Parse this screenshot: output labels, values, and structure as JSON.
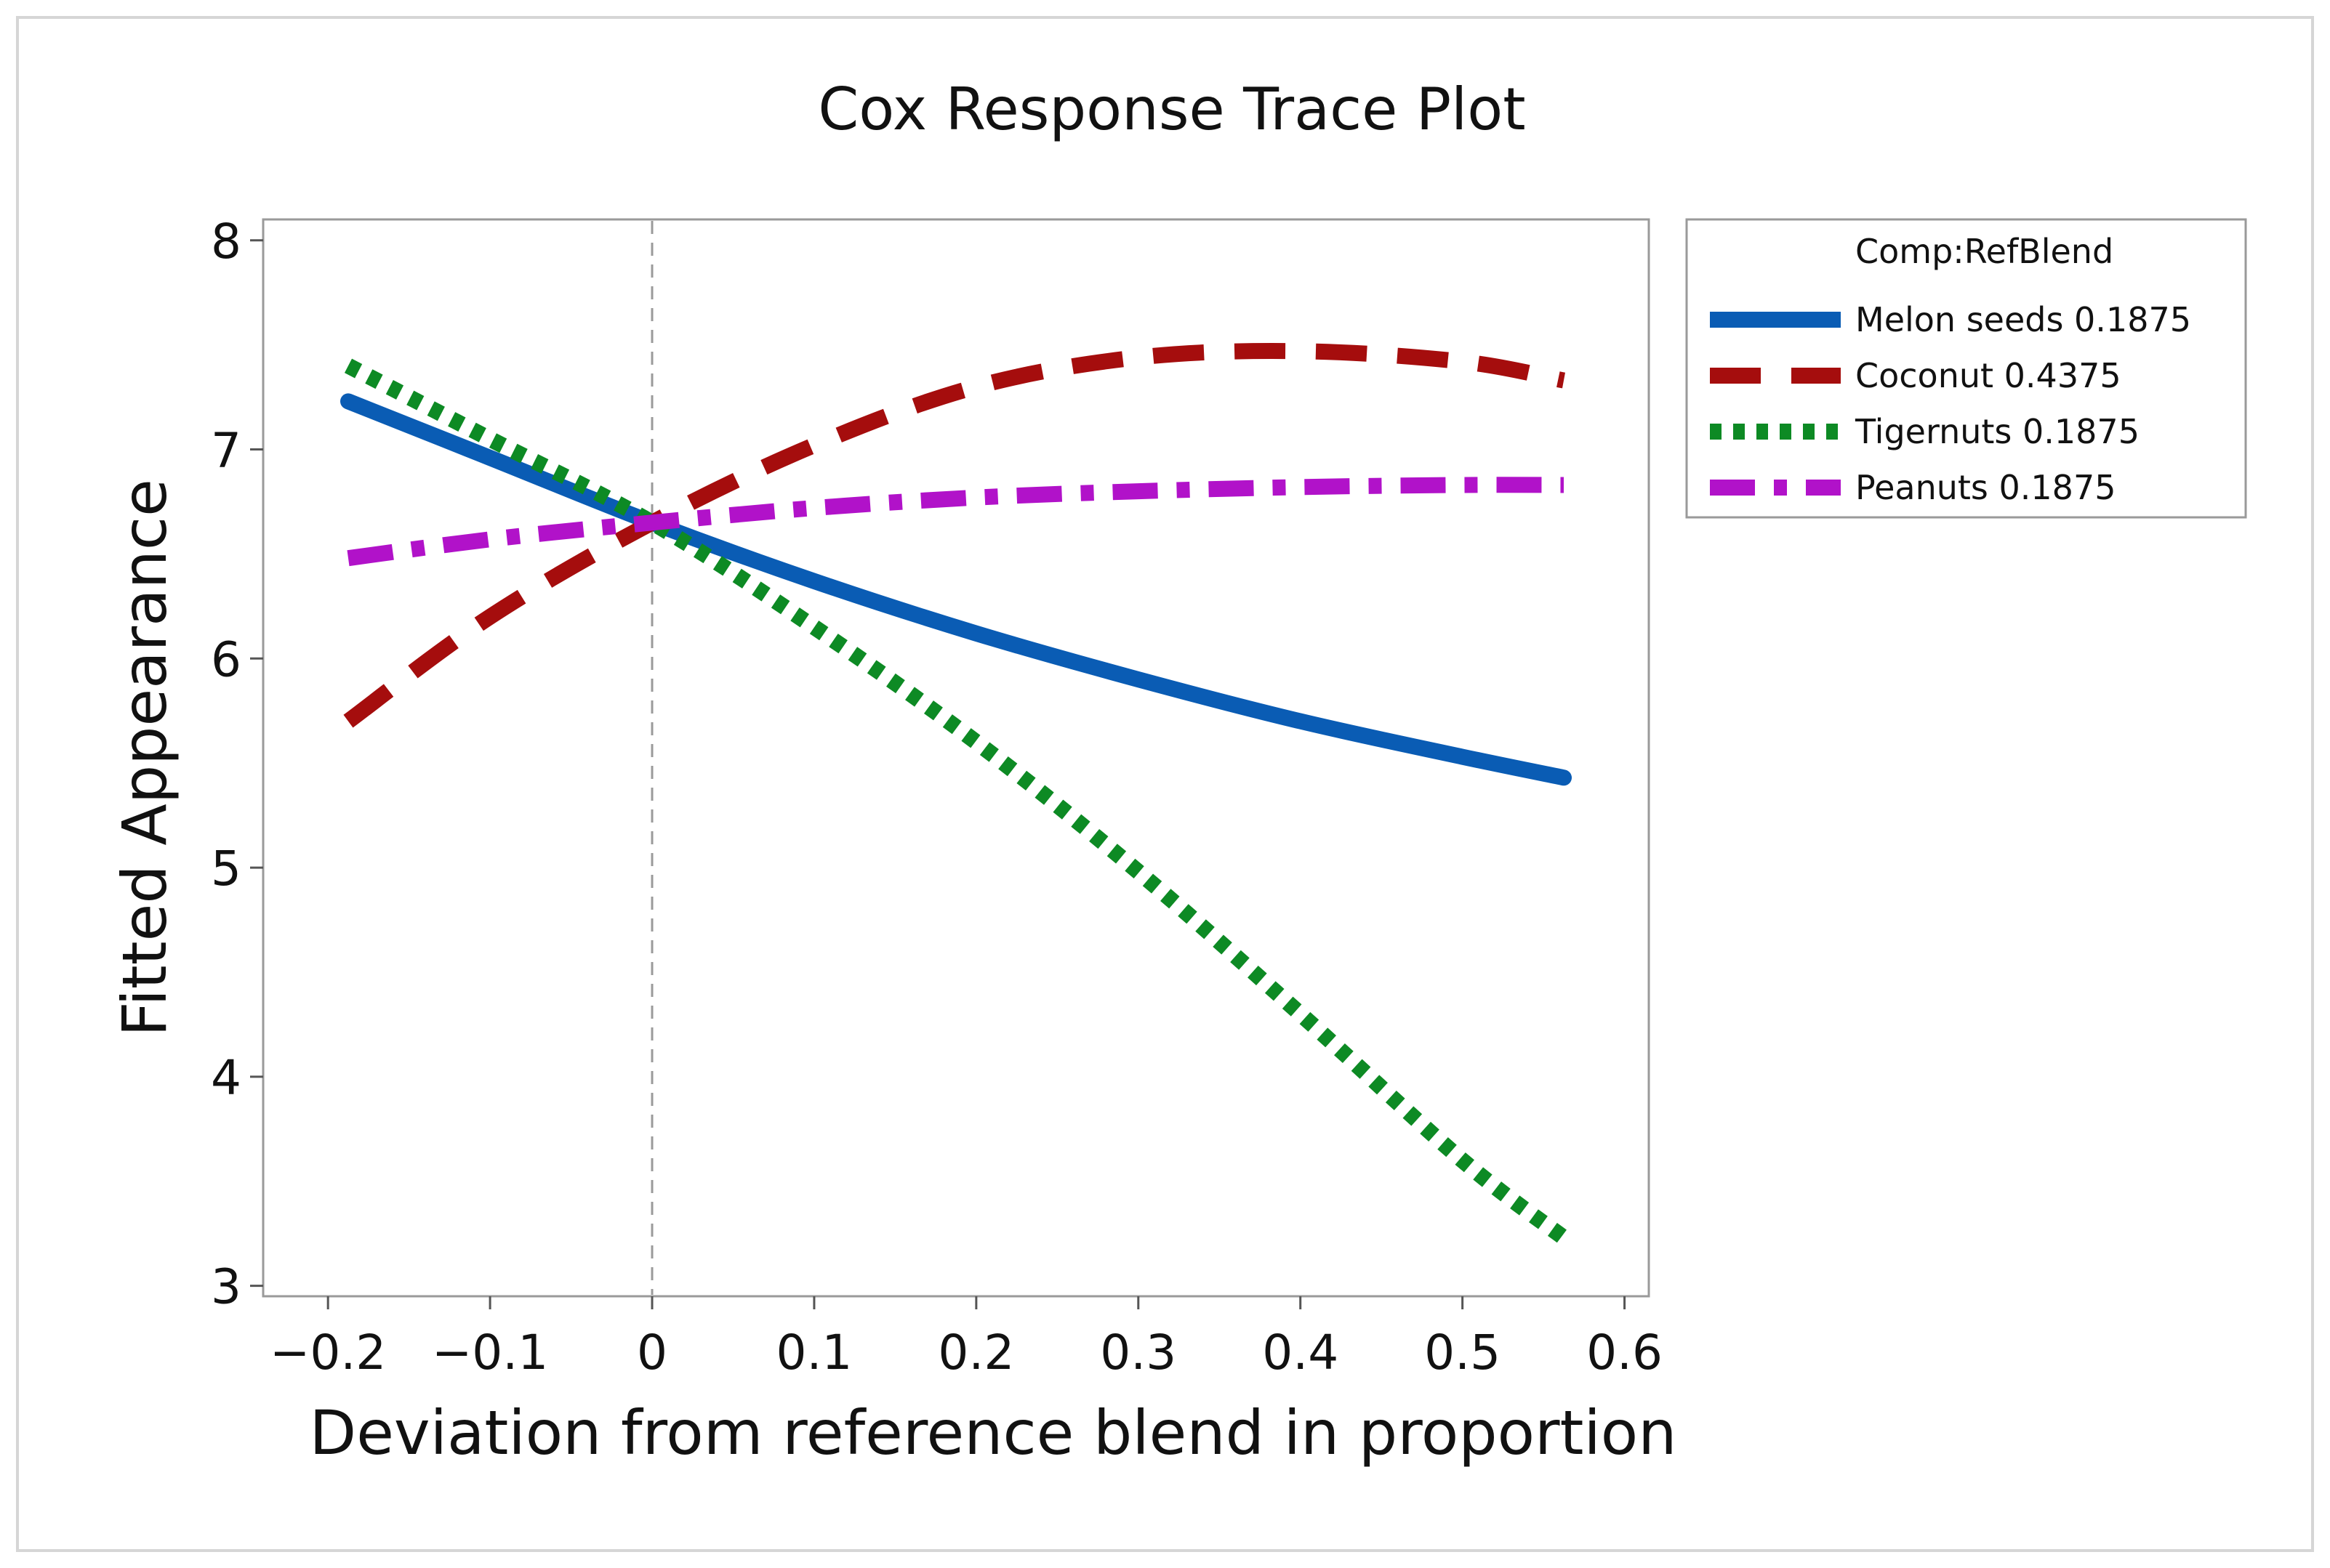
{
  "chart_data": {
    "type": "line",
    "title": "Cox Response Trace Plot",
    "xlabel": "Deviation from reference blend in proportion",
    "ylabel": "Fitted Appearance",
    "xlim": [
      -0.24,
      0.615
    ],
    "ylim": [
      2.95,
      8.1
    ],
    "xticks": [
      -0.2,
      -0.1,
      0,
      0.1,
      0.2,
      0.3,
      0.4,
      0.5,
      0.6
    ],
    "xtick_labels": [
      "−0.2",
      "−0.1",
      "0",
      "0.1",
      "0.2",
      "0.3",
      "0.4",
      "0.5",
      "0.6"
    ],
    "yticks": [
      3,
      4,
      5,
      6,
      7,
      8
    ],
    "ytick_labels": [
      "3",
      "4",
      "5",
      "6",
      "7",
      "8"
    ],
    "reference_line_x": 0,
    "grid": false,
    "legend": {
      "title": "Comp:RefBlend",
      "position": "outside-right-top"
    },
    "series": [
      {
        "name": "Melon seeds",
        "ref_value": "0.1875",
        "label": "Melon seeds  0.1875",
        "color": "#0a5cb4",
        "style": "solid",
        "x": [
          -0.1875,
          -0.1,
          0,
          0.1,
          0.2,
          0.3,
          0.4,
          0.5,
          0.5625
        ],
        "y": [
          7.23,
          6.96,
          6.65,
          6.37,
          6.12,
          5.9,
          5.7,
          5.53,
          5.43
        ]
      },
      {
        "name": "Coconut",
        "ref_value": "0.4375",
        "label": "Coconut  0.4375",
        "color": "#a50d0d",
        "style": "dashed",
        "x": [
          -0.1875,
          -0.1,
          0,
          0.1,
          0.2,
          0.3,
          0.4,
          0.5,
          0.5625
        ],
        "y": [
          5.7,
          6.2,
          6.65,
          7.02,
          7.3,
          7.44,
          7.47,
          7.42,
          7.33
        ]
      },
      {
        "name": "Tigernuts",
        "ref_value": "0.1875",
        "label": "Tigernuts  0.1875",
        "color": "#0d8a24",
        "style": "dotted",
        "x": [
          -0.1875,
          -0.1,
          0,
          0.1,
          0.2,
          0.3,
          0.4,
          0.5,
          0.5625
        ],
        "y": [
          7.4,
          7.05,
          6.65,
          6.15,
          5.6,
          4.98,
          4.3,
          3.6,
          3.23
        ]
      },
      {
        "name": "Peanuts",
        "ref_value": "0.1875",
        "label": "Peanuts  0.1875",
        "color": "#b112c9",
        "style": "dashdot",
        "x": [
          -0.1875,
          -0.1,
          0,
          0.1,
          0.2,
          0.3,
          0.4,
          0.5,
          0.5625
        ],
        "y": [
          6.48,
          6.57,
          6.65,
          6.72,
          6.77,
          6.8,
          6.82,
          6.83,
          6.83
        ]
      }
    ]
  }
}
